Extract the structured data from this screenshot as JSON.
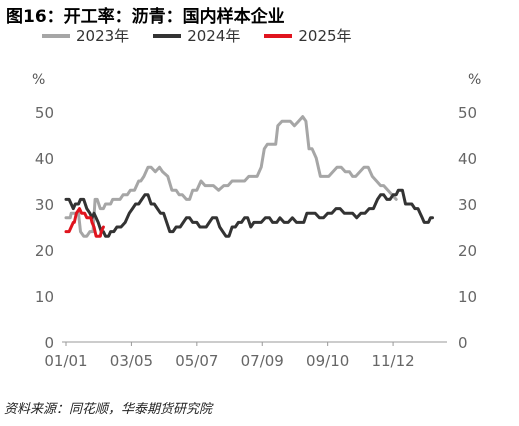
{
  "title": "图16：开工率：沥青：国内样本企业",
  "source": "资料来源：同花顺，华泰期货研究院",
  "unit_left": "%",
  "unit_right": "%",
  "chart_data": {
    "type": "line",
    "ylim": [
      0,
      50
    ],
    "y_ticks": [
      0,
      10,
      20,
      30,
      40,
      50
    ],
    "x_ticks": [
      "01/01",
      "03/05",
      "05/07",
      "07/09",
      "09/10",
      "11/12"
    ],
    "x_tick_days": [
      0,
      63,
      126,
      189,
      252,
      315
    ],
    "x_max_day": 365,
    "grid": false,
    "legend_position": "top",
    "series": [
      {
        "name": "2023年",
        "color": "#a6a6a6",
        "points": [
          [
            0,
            27
          ],
          [
            4,
            27
          ],
          [
            5,
            28
          ],
          [
            9,
            28
          ],
          [
            12,
            28
          ],
          [
            14,
            24
          ],
          [
            17,
            23
          ],
          [
            20,
            23
          ],
          [
            23,
            24
          ],
          [
            26,
            24
          ],
          [
            28,
            31
          ],
          [
            30,
            31
          ],
          [
            33,
            29
          ],
          [
            36,
            29
          ],
          [
            38,
            30
          ],
          [
            40,
            30
          ],
          [
            43,
            30
          ],
          [
            45,
            31
          ],
          [
            49,
            31
          ],
          [
            52,
            31
          ],
          [
            55,
            32
          ],
          [
            59,
            32
          ],
          [
            62,
            33
          ],
          [
            66,
            33
          ],
          [
            70,
            35
          ],
          [
            72,
            35
          ],
          [
            75,
            36
          ],
          [
            79,
            38
          ],
          [
            82,
            38
          ],
          [
            86,
            37
          ],
          [
            90,
            38
          ],
          [
            93,
            37
          ],
          [
            98,
            36
          ],
          [
            102,
            33
          ],
          [
            106,
            33
          ],
          [
            109,
            32
          ],
          [
            112,
            32
          ],
          [
            116,
            31
          ],
          [
            119,
            31
          ],
          [
            122,
            33
          ],
          [
            126,
            33
          ],
          [
            130,
            35
          ],
          [
            134,
            34
          ],
          [
            138,
            34
          ],
          [
            142,
            34
          ],
          [
            147,
            33
          ],
          [
            152,
            34
          ],
          [
            156,
            34
          ],
          [
            160,
            35
          ],
          [
            164,
            35
          ],
          [
            168,
            35
          ],
          [
            172,
            35
          ],
          [
            176,
            36
          ],
          [
            180,
            36
          ],
          [
            184,
            36
          ],
          [
            188,
            38
          ],
          [
            191,
            42
          ],
          [
            194,
            43
          ],
          [
            198,
            43
          ],
          [
            202,
            43
          ],
          [
            204,
            47
          ],
          [
            208,
            48
          ],
          [
            212,
            48
          ],
          [
            216,
            48
          ],
          [
            220,
            47
          ],
          [
            224,
            48
          ],
          [
            228,
            49
          ],
          [
            231,
            48
          ],
          [
            234,
            42
          ],
          [
            237,
            42
          ],
          [
            241,
            40
          ],
          [
            245,
            36
          ],
          [
            249,
            36
          ],
          [
            253,
            36
          ],
          [
            257,
            37
          ],
          [
            261,
            38
          ],
          [
            265,
            38
          ],
          [
            269,
            37
          ],
          [
            273,
            37
          ],
          [
            276,
            36
          ],
          [
            279,
            36
          ],
          [
            283,
            37
          ],
          [
            287,
            38
          ],
          [
            291,
            38
          ],
          [
            295,
            36
          ],
          [
            299,
            35
          ],
          [
            303,
            34
          ],
          [
            306,
            34
          ],
          [
            310,
            33
          ],
          [
            314,
            32
          ],
          [
            318,
            31
          ]
        ]
      },
      {
        "name": "2024年",
        "color": "#333333",
        "points": [
          [
            0,
            31
          ],
          [
            3,
            31
          ],
          [
            5,
            30
          ],
          [
            7,
            29
          ],
          [
            9,
            30
          ],
          [
            12,
            30
          ],
          [
            14,
            31
          ],
          [
            17,
            31
          ],
          [
            20,
            29
          ],
          [
            23,
            28
          ],
          [
            25,
            27
          ],
          [
            27,
            28
          ],
          [
            29,
            27
          ],
          [
            31,
            26
          ],
          [
            34,
            24
          ],
          [
            36,
            24
          ],
          [
            38,
            23
          ],
          [
            41,
            23
          ],
          [
            43,
            24
          ],
          [
            46,
            24
          ],
          [
            49,
            25
          ],
          [
            53,
            25
          ],
          [
            57,
            26
          ],
          [
            61,
            28
          ],
          [
            64,
            29
          ],
          [
            67,
            30
          ],
          [
            70,
            30
          ],
          [
            73,
            31
          ],
          [
            76,
            32
          ],
          [
            79,
            32
          ],
          [
            82,
            30
          ],
          [
            85,
            30
          ],
          [
            88,
            29
          ],
          [
            91,
            28
          ],
          [
            94,
            28
          ],
          [
            97,
            26
          ],
          [
            100,
            24
          ],
          [
            103,
            24
          ],
          [
            106,
            25
          ],
          [
            110,
            25
          ],
          [
            113,
            26
          ],
          [
            116,
            27
          ],
          [
            119,
            27
          ],
          [
            122,
            26
          ],
          [
            126,
            26
          ],
          [
            129,
            25
          ],
          [
            132,
            25
          ],
          [
            135,
            25
          ],
          [
            138,
            26
          ],
          [
            141,
            27
          ],
          [
            145,
            27
          ],
          [
            148,
            25
          ],
          [
            151,
            24
          ],
          [
            154,
            23
          ],
          [
            157,
            23
          ],
          [
            160,
            25
          ],
          [
            163,
            25
          ],
          [
            166,
            26
          ],
          [
            169,
            26
          ],
          [
            172,
            27
          ],
          [
            175,
            27
          ],
          [
            178,
            25
          ],
          [
            181,
            26
          ],
          [
            185,
            26
          ],
          [
            188,
            26
          ],
          [
            192,
            27
          ],
          [
            196,
            27
          ],
          [
            199,
            26
          ],
          [
            203,
            26
          ],
          [
            206,
            27
          ],
          [
            210,
            26
          ],
          [
            214,
            26
          ],
          [
            218,
            27
          ],
          [
            222,
            26
          ],
          [
            226,
            26
          ],
          [
            229,
            26
          ],
          [
            232,
            28
          ],
          [
            236,
            28
          ],
          [
            240,
            28
          ],
          [
            244,
            27
          ],
          [
            248,
            27
          ],
          [
            252,
            28
          ],
          [
            256,
            28
          ],
          [
            260,
            29
          ],
          [
            264,
            29
          ],
          [
            268,
            28
          ],
          [
            272,
            28
          ],
          [
            276,
            28
          ],
          [
            280,
            27
          ],
          [
            284,
            28
          ],
          [
            288,
            28
          ],
          [
            292,
            29
          ],
          [
            296,
            29
          ],
          [
            300,
            31
          ],
          [
            303,
            32
          ],
          [
            306,
            32
          ],
          [
            309,
            31
          ],
          [
            312,
            31
          ],
          [
            315,
            32
          ],
          [
            318,
            32
          ],
          [
            320,
            33
          ],
          [
            322,
            33
          ],
          [
            324,
            33
          ],
          [
            327,
            30
          ],
          [
            330,
            30
          ],
          [
            333,
            30
          ],
          [
            336,
            29
          ],
          [
            339,
            29
          ],
          [
            341,
            28
          ],
          [
            343,
            27
          ],
          [
            345,
            26
          ],
          [
            347,
            26
          ],
          [
            349,
            26
          ],
          [
            351,
            27
          ],
          [
            353,
            27
          ]
        ]
      },
      {
        "name": "2025年",
        "color": "#e0141e",
        "points": [
          [
            0,
            24
          ],
          [
            3,
            24
          ],
          [
            5,
            25
          ],
          [
            7,
            26
          ],
          [
            8,
            26
          ],
          [
            10,
            28
          ],
          [
            13,
            29
          ],
          [
            15,
            28
          ],
          [
            18,
            28
          ],
          [
            20,
            27
          ],
          [
            22,
            27
          ],
          [
            24,
            27
          ],
          [
            25,
            26
          ],
          [
            27,
            25
          ],
          [
            29,
            23
          ],
          [
            31,
            23
          ],
          [
            33,
            23
          ],
          [
            34,
            24
          ],
          [
            36,
            25
          ]
        ]
      }
    ]
  }
}
